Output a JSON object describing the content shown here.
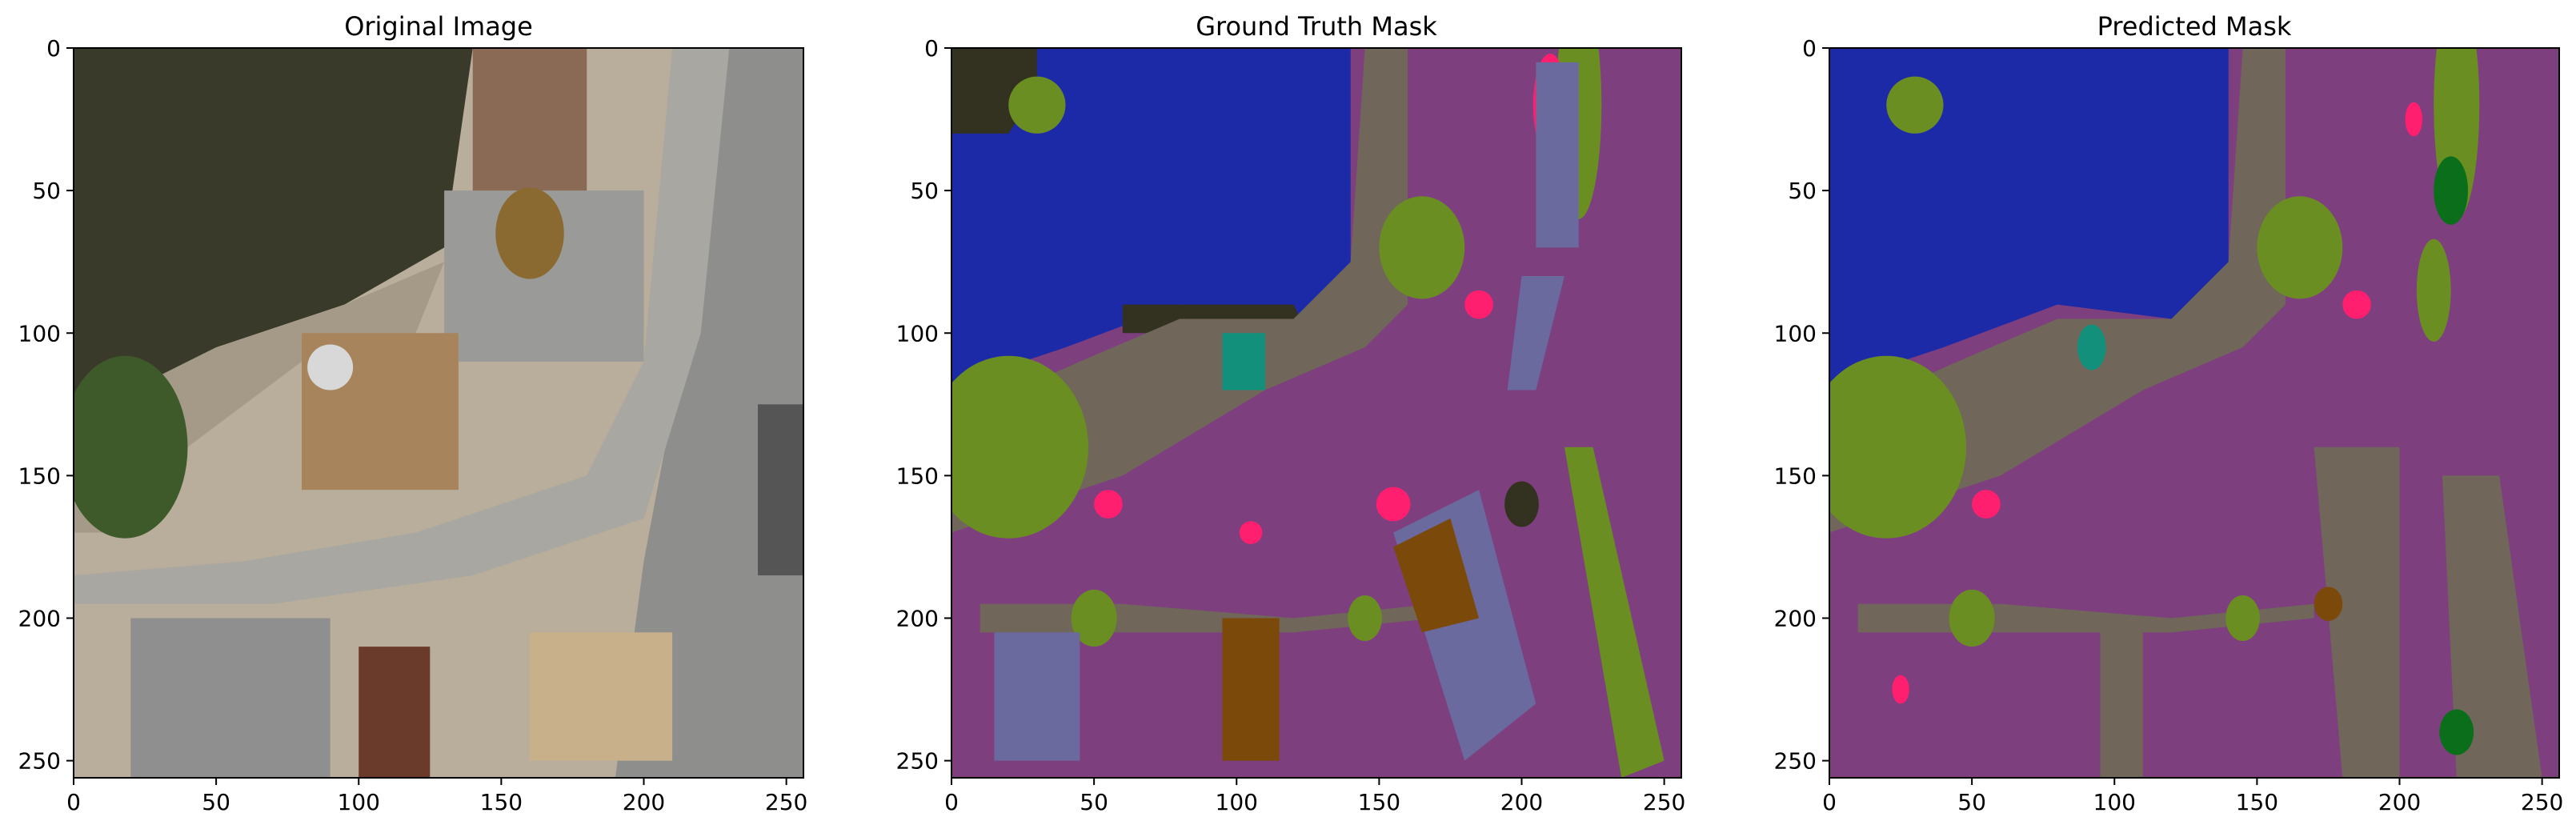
{
  "chart_data": [
    {
      "type": "image",
      "title": "Original Image",
      "content": "aerial-photo",
      "xlim": [
        0,
        256
      ],
      "ylim": [
        256,
        0
      ],
      "xticks": [
        0,
        50,
        100,
        150,
        200,
        250
      ],
      "yticks": [
        0,
        50,
        100,
        150,
        200,
        250
      ],
      "palette": {
        "pond": "#3a3a2a",
        "ground": "#b9ad9b",
        "pavement": "#9a9a98",
        "vegetation": "#3f5a2a",
        "wood": "#a8845c",
        "roof": "#8f8f8f"
      }
    },
    {
      "type": "segmentation-mask",
      "title": "Ground Truth Mask",
      "xlim": [
        0,
        256
      ],
      "ylim": [
        256,
        0
      ],
      "xticks": [
        0,
        50,
        100,
        150,
        200,
        250
      ],
      "yticks": [
        0,
        50,
        100,
        150,
        200,
        250
      ],
      "palette": {
        "water": "#1c2aa8",
        "ground": "#7e3f7f",
        "path": "#70665a",
        "vegetation": "#6b8e23",
        "dark": "#33311f",
        "pink": "#ff1f6e",
        "teal": "#12907c",
        "slate": "#6a6a9f",
        "brown": "#7b4a0a",
        "grey-blue": "#7c9a9a"
      }
    },
    {
      "type": "segmentation-mask",
      "title": "Predicted Mask",
      "xlim": [
        0,
        256
      ],
      "ylim": [
        256,
        0
      ],
      "xticks": [
        0,
        50,
        100,
        150,
        200,
        250
      ],
      "yticks": [
        0,
        50,
        100,
        150,
        200,
        250
      ],
      "palette": {
        "water": "#1c2aa8",
        "ground": "#7e3f7f",
        "path": "#70665a",
        "vegetation": "#6b8e23",
        "dark": "#33311f",
        "pink": "#ff1f6e",
        "teal": "#12907c",
        "slate": "#6a6a9f",
        "brown": "#7b4a0a",
        "dark-green": "#0a6e1a"
      }
    }
  ]
}
